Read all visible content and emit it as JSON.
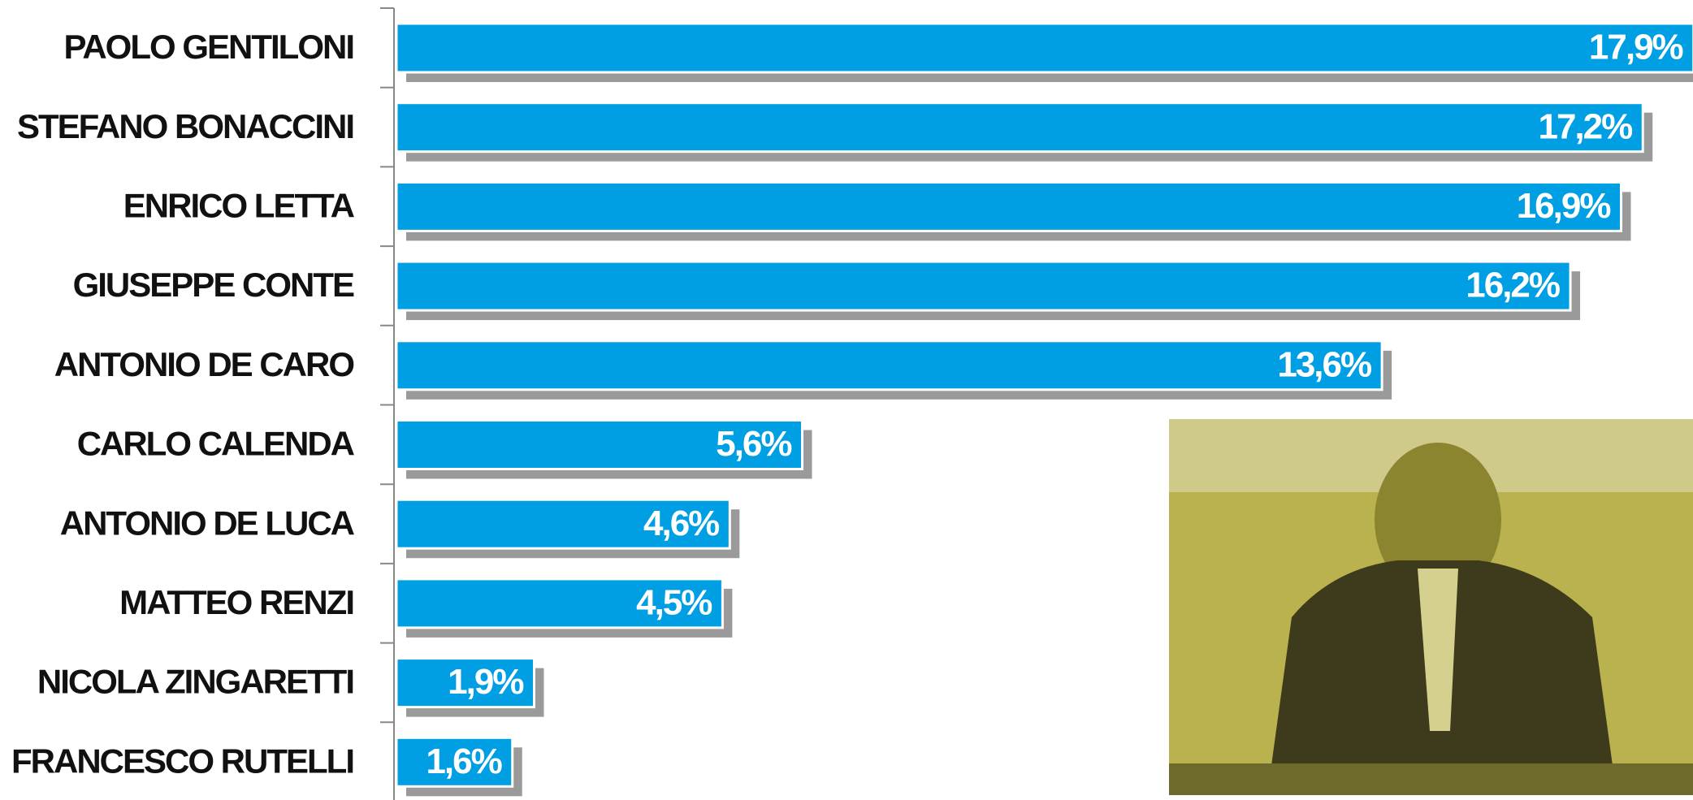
{
  "chart_data": {
    "type": "bar",
    "orientation": "horizontal",
    "color": "#009fe3",
    "categories": [
      "PAOLO GENTILONI",
      "STEFANO BONACCINI",
      "ENRICO LETTA",
      "GIUSEPPE CONTE",
      "ANTONIO DE CARO",
      "CARLO CALENDA",
      "ANTONIO DE LUCA",
      "MATTEO RENZI",
      "NICOLA ZINGARETTI",
      "FRANCESCO RUTELLI"
    ],
    "values": [
      17.9,
      17.2,
      16.9,
      16.2,
      13.6,
      5.6,
      4.6,
      4.5,
      1.9,
      1.6
    ],
    "value_labels": [
      "17,9%",
      "17,2%",
      "16,9%",
      "16,2%",
      "13,6%",
      "5,6%",
      "4,6%",
      "4,5%",
      "1,9%",
      "1,6%"
    ]
  }
}
